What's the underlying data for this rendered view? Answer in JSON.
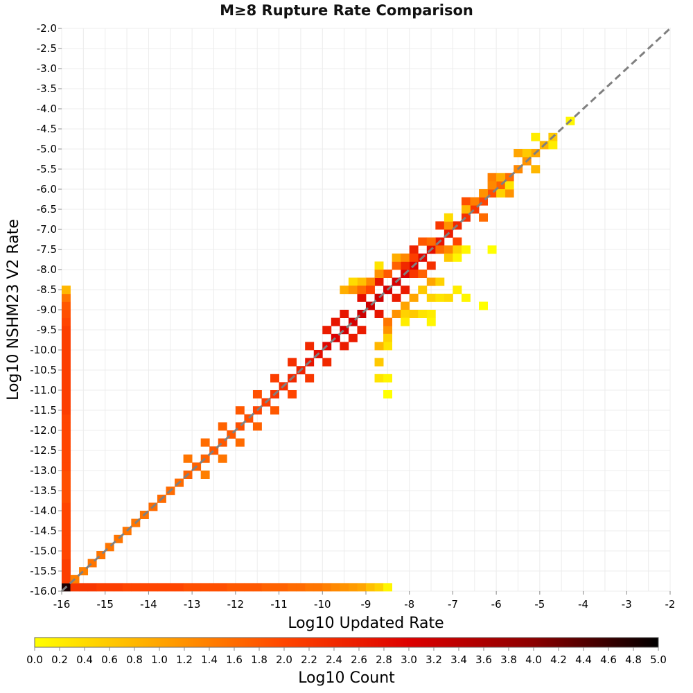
{
  "chart_data": {
    "type": "heatmap",
    "title": "M≥8 Rupture Rate Comparison",
    "xlabel": "Log10 Updated Rate",
    "ylabel": "Log10 NSHM23 V2 Rate",
    "xlim": [
      -16,
      -2
    ],
    "ylim": [
      -16,
      -2
    ],
    "x_ticks": [
      "-16",
      "-15",
      "-14",
      "-13",
      "-12",
      "-11",
      "-10",
      "-9",
      "-8",
      "-7",
      "-6",
      "-5",
      "-4",
      "-3",
      "-2"
    ],
    "y_ticks": [
      "-2.0",
      "-2.5",
      "-3.0",
      "-3.5",
      "-4.0",
      "-4.5",
      "-5.0",
      "-5.5",
      "-6.0",
      "-6.5",
      "-7.0",
      "-7.5",
      "-8.0",
      "-8.5",
      "-9.0",
      "-9.5",
      "-10.0",
      "-10.5",
      "-11.0",
      "-11.5",
      "-12.0",
      "-12.5",
      "-13.0",
      "-13.5",
      "-14.0",
      "-14.5",
      "-15.0",
      "-15.5",
      "-16.0"
    ],
    "grid": true,
    "bin_size": 0.2,
    "reference_line": {
      "from": [
        -16,
        -16
      ],
      "to": [
        -2,
        -2
      ],
      "style": "dashed",
      "color": "#808080"
    },
    "colorbar": {
      "label": "Log10 Count",
      "range": [
        0,
        5
      ],
      "ticks": [
        "0.0",
        "0.2",
        "0.4",
        "0.6",
        "0.8",
        "1.0",
        "1.2",
        "1.4",
        "1.6",
        "1.8",
        "2.0",
        "2.2",
        "2.4",
        "2.6",
        "2.8",
        "3.0",
        "3.2",
        "3.4",
        "3.6",
        "3.8",
        "4.0",
        "4.2",
        "4.4",
        "4.6",
        "4.8",
        "5.0"
      ],
      "colors": [
        "#ffff00",
        "#ffa500",
        "#ff4500",
        "#dd0000",
        "#8b0000",
        "#000000"
      ]
    },
    "cells": [
      [
        -16.0,
        -16.0,
        4.8
      ],
      [
        -15.8,
        -16.0,
        2.2
      ],
      [
        -15.6,
        -16.0,
        2.2
      ],
      [
        -15.4,
        -16.0,
        2.2
      ],
      [
        -15.2,
        -16.0,
        2.1
      ],
      [
        -15.0,
        -16.0,
        2.1
      ],
      [
        -14.8,
        -16.0,
        2.1
      ],
      [
        -14.6,
        -16.0,
        2.0
      ],
      [
        -14.4,
        -16.0,
        2.0
      ],
      [
        -14.2,
        -16.0,
        2.0
      ],
      [
        -14.0,
        -16.0,
        2.0
      ],
      [
        -13.8,
        -16.0,
        2.0
      ],
      [
        -13.6,
        -16.0,
        2.0
      ],
      [
        -13.4,
        -16.0,
        2.0
      ],
      [
        -13.2,
        -16.0,
        1.9
      ],
      [
        -13.0,
        -16.0,
        1.9
      ],
      [
        -12.8,
        -16.0,
        1.9
      ],
      [
        -12.6,
        -16.0,
        1.9
      ],
      [
        -12.4,
        -16.0,
        1.9
      ],
      [
        -12.2,
        -16.0,
        1.8
      ],
      [
        -12.0,
        -16.0,
        1.8
      ],
      [
        -11.8,
        -16.0,
        1.8
      ],
      [
        -11.6,
        -16.0,
        1.8
      ],
      [
        -11.4,
        -16.0,
        1.7
      ],
      [
        -11.2,
        -16.0,
        1.7
      ],
      [
        -11.0,
        -16.0,
        1.7
      ],
      [
        -10.8,
        -16.0,
        1.6
      ],
      [
        -10.6,
        -16.0,
        1.6
      ],
      [
        -10.4,
        -16.0,
        1.5
      ],
      [
        -10.2,
        -16.0,
        1.5
      ],
      [
        -10.0,
        -16.0,
        1.4
      ],
      [
        -9.8,
        -16.0,
        1.3
      ],
      [
        -9.6,
        -16.0,
        1.2
      ],
      [
        -9.4,
        -16.0,
        1.1
      ],
      [
        -9.2,
        -16.0,
        1.0
      ],
      [
        -9.0,
        -16.0,
        0.7
      ],
      [
        -8.8,
        -16.0,
        0.5
      ],
      [
        -8.6,
        -16.0,
        0.1
      ],
      [
        -16.0,
        -15.8,
        2.1
      ],
      [
        -16.0,
        -15.6,
        2.1
      ],
      [
        -16.0,
        -15.4,
        2.1
      ],
      [
        -16.0,
        -15.2,
        2.0
      ],
      [
        -16.0,
        -15.0,
        2.0
      ],
      [
        -16.0,
        -14.8,
        2.0
      ],
      [
        -16.0,
        -14.6,
        2.0
      ],
      [
        -16.0,
        -14.4,
        2.0
      ],
      [
        -16.0,
        -14.2,
        2.0
      ],
      [
        -16.0,
        -14.0,
        2.0
      ],
      [
        -16.0,
        -13.8,
        1.9
      ],
      [
        -16.0,
        -13.6,
        1.9
      ],
      [
        -16.0,
        -13.4,
        1.9
      ],
      [
        -16.0,
        -13.2,
        1.9
      ],
      [
        -16.0,
        -13.0,
        2.0
      ],
      [
        -16.0,
        -12.8,
        2.0
      ],
      [
        -16.0,
        -12.6,
        2.0
      ],
      [
        -16.0,
        -12.4,
        2.0
      ],
      [
        -16.0,
        -12.2,
        2.0
      ],
      [
        -16.0,
        -12.0,
        2.0
      ],
      [
        -16.0,
        -11.8,
        2.0
      ],
      [
        -16.0,
        -11.6,
        2.1
      ],
      [
        -16.0,
        -11.4,
        2.1
      ],
      [
        -16.0,
        -11.2,
        2.1
      ],
      [
        -16.0,
        -11.0,
        2.1
      ],
      [
        -16.0,
        -10.8,
        2.1
      ],
      [
        -16.0,
        -10.6,
        2.1
      ],
      [
        -16.0,
        -10.4,
        2.1
      ],
      [
        -16.0,
        -10.2,
        2.1
      ],
      [
        -16.0,
        -10.0,
        2.1
      ],
      [
        -16.0,
        -9.8,
        2.1
      ],
      [
        -16.0,
        -9.6,
        2.1
      ],
      [
        -16.0,
        -9.4,
        2.0
      ],
      [
        -16.0,
        -9.2,
        1.9
      ],
      [
        -16.0,
        -9.0,
        1.8
      ],
      [
        -16.0,
        -8.8,
        1.5
      ],
      [
        -16.0,
        -8.6,
        0.8
      ],
      [
        -15.8,
        -15.8,
        1.4
      ],
      [
        -15.6,
        -15.6,
        1.4
      ],
      [
        -15.4,
        -15.4,
        1.5
      ],
      [
        -15.2,
        -15.2,
        1.5
      ],
      [
        -15.0,
        -15.0,
        1.5
      ],
      [
        -14.8,
        -14.8,
        1.5
      ],
      [
        -14.6,
        -14.6,
        1.5
      ],
      [
        -14.4,
        -14.4,
        1.5
      ],
      [
        -14.2,
        -14.2,
        1.5
      ],
      [
        -14.0,
        -14.0,
        1.6
      ],
      [
        -13.8,
        -13.8,
        1.6
      ],
      [
        -13.6,
        -13.6,
        1.6
      ],
      [
        -13.4,
        -13.4,
        1.6
      ],
      [
        -13.2,
        -13.2,
        1.7
      ],
      [
        -13.0,
        -13.0,
        1.7
      ],
      [
        -12.8,
        -12.8,
        1.7
      ],
      [
        -12.6,
        -12.6,
        1.8
      ],
      [
        -12.4,
        -12.4,
        1.8
      ],
      [
        -12.2,
        -12.2,
        1.8
      ],
      [
        -12.0,
        -12.0,
        1.9
      ],
      [
        -11.8,
        -11.8,
        1.9
      ],
      [
        -11.6,
        -11.6,
        2.0
      ],
      [
        -11.4,
        -11.4,
        2.1
      ],
      [
        -11.2,
        -11.2,
        2.2
      ],
      [
        -11.0,
        -11.0,
        2.3
      ],
      [
        -10.8,
        -10.8,
        2.4
      ],
      [
        -10.6,
        -10.6,
        2.5
      ],
      [
        -10.4,
        -10.4,
        2.7
      ],
      [
        -10.2,
        -10.2,
        2.8
      ],
      [
        -10.0,
        -10.0,
        2.9
      ],
      [
        -9.8,
        -9.8,
        3.0
      ],
      [
        -9.6,
        -9.6,
        3.1
      ],
      [
        -9.4,
        -9.4,
        3.1
      ],
      [
        -9.2,
        -9.2,
        3.2
      ],
      [
        -9.0,
        -9.0,
        3.2
      ],
      [
        -8.8,
        -8.8,
        3.2
      ],
      [
        -8.6,
        -8.6,
        3.1
      ],
      [
        -8.4,
        -8.4,
        3.1
      ],
      [
        -8.2,
        -8.2,
        3.0
      ],
      [
        -8.0,
        -8.0,
        3.0
      ],
      [
        -7.8,
        -7.8,
        2.9
      ],
      [
        -7.6,
        -7.6,
        2.8
      ],
      [
        -7.4,
        -7.4,
        2.7
      ],
      [
        -7.2,
        -7.2,
        2.6
      ],
      [
        -7.0,
        -7.0,
        2.4
      ],
      [
        -6.8,
        -6.8,
        2.3
      ],
      [
        -6.6,
        -6.6,
        2.2
      ],
      [
        -6.4,
        -6.4,
        2.0
      ],
      [
        -6.2,
        -6.2,
        1.9
      ],
      [
        -6.0,
        -6.0,
        1.7
      ],
      [
        -5.8,
        -5.8,
        1.6
      ],
      [
        -5.6,
        -5.6,
        1.3
      ],
      [
        -5.4,
        -5.4,
        1.2
      ],
      [
        -5.2,
        -5.2,
        1.0
      ],
      [
        -5.0,
        -5.0,
        0.8
      ],
      [
        -4.8,
        -4.8,
        0.6
      ],
      [
        -4.4,
        -4.4,
        0.1
      ],
      [
        -10.0,
        -9.6,
        2.6
      ],
      [
        -9.6,
        -10.0,
        2.6
      ],
      [
        -10.4,
        -10.0,
        2.4
      ],
      [
        -10.0,
        -10.4,
        2.4
      ],
      [
        -9.8,
        -9.4,
        2.7
      ],
      [
        -9.4,
        -9.8,
        2.6
      ],
      [
        -9.2,
        -8.8,
        2.8
      ],
      [
        -8.8,
        -9.2,
        2.7
      ],
      [
        -9.6,
        -9.2,
        2.7
      ],
      [
        -9.2,
        -9.6,
        2.6
      ],
      [
        -8.6,
        -8.2,
        2.7
      ],
      [
        -8.2,
        -8.6,
        2.6
      ],
      [
        -8.8,
        -8.4,
        2.7
      ],
      [
        -8.4,
        -8.8,
        2.6
      ],
      [
        -8.0,
        -7.6,
        2.5
      ],
      [
        -7.6,
        -8.0,
        2.3
      ],
      [
        -7.4,
        -7.0,
        2.2
      ],
      [
        -7.0,
        -7.4,
        2.0
      ],
      [
        -6.8,
        -6.4,
        1.9
      ],
      [
        -6.4,
        -6.8,
        1.6
      ],
      [
        -6.2,
        -5.8,
        1.4
      ],
      [
        -5.8,
        -6.2,
        1.2
      ],
      [
        -5.6,
        -5.2,
        1.0
      ],
      [
        -5.2,
        -5.6,
        0.8
      ],
      [
        -4.8,
        -5.0,
        0.2
      ],
      [
        -5.2,
        -4.8,
        0.2
      ],
      [
        -10.8,
        -10.4,
        2.3
      ],
      [
        -10.4,
        -10.8,
        2.2
      ],
      [
        -11.2,
        -10.8,
        2.1
      ],
      [
        -10.8,
        -11.2,
        2.0
      ],
      [
        -11.6,
        -11.2,
        1.9
      ],
      [
        -11.2,
        -11.6,
        1.8
      ],
      [
        -12.0,
        -11.6,
        1.8
      ],
      [
        -11.6,
        -12.0,
        1.7
      ],
      [
        -12.4,
        -12.0,
        1.7
      ],
      [
        -12.0,
        -12.4,
        1.6
      ],
      [
        -12.8,
        -12.4,
        1.6
      ],
      [
        -12.4,
        -12.8,
        1.5
      ],
      [
        -13.2,
        -12.8,
        1.5
      ],
      [
        -12.8,
        -13.2,
        1.4
      ],
      [
        -7.8,
        -7.4,
        1.8
      ],
      [
        -7.6,
        -7.4,
        1.6
      ],
      [
        -7.4,
        -7.6,
        1.6
      ],
      [
        -7.2,
        -7.6,
        1.3
      ],
      [
        -7.0,
        -7.6,
        0.5
      ],
      [
        -6.8,
        -7.6,
        0.1
      ],
      [
        -6.2,
        -7.6,
        0.0
      ],
      [
        -7.2,
        -7.8,
        0.6
      ],
      [
        -7.0,
        -7.8,
        0.1
      ],
      [
        -7.2,
        -7.0,
        1.2
      ],
      [
        -7.2,
        -6.8,
        0.4
      ],
      [
        -6.8,
        -6.6,
        0.8
      ],
      [
        -6.6,
        -6.4,
        1.4
      ],
      [
        -6.4,
        -6.2,
        1.2
      ],
      [
        -6.2,
        -6.0,
        1.3
      ],
      [
        -6.0,
        -5.8,
        0.9
      ],
      [
        -5.4,
        -5.2,
        0.6
      ],
      [
        -6.0,
        -6.2,
        0.5
      ],
      [
        -5.8,
        -6.0,
        0.3
      ],
      [
        -8.2,
        -8.0,
        2.4
      ],
      [
        -8.0,
        -8.2,
        2.2
      ],
      [
        -8.4,
        -8.0,
        1.7
      ],
      [
        -7.8,
        -8.2,
        1.7
      ],
      [
        -7.6,
        -8.4,
        1.0
      ],
      [
        -7.4,
        -8.4,
        0.5
      ],
      [
        -8.8,
        -8.0,
        0.3
      ],
      [
        -8.4,
        -7.8,
        0.9
      ],
      [
        -8.2,
        -7.8,
        1.3
      ],
      [
        -8.0,
        -7.8,
        2.1
      ],
      [
        -8.6,
        -8.2,
        1.8
      ],
      [
        -8.8,
        -8.2,
        1.2
      ],
      [
        -9.0,
        -8.4,
        1.3
      ],
      [
        -9.2,
        -8.4,
        0.7
      ],
      [
        -9.4,
        -8.4,
        0.4
      ],
      [
        -9.6,
        -8.6,
        0.9
      ],
      [
        -9.4,
        -8.6,
        1.2
      ],
      [
        -9.2,
        -8.6,
        1.6
      ],
      [
        -9.0,
        -8.6,
        2.0
      ],
      [
        -8.6,
        -9.6,
        1.2
      ],
      [
        -8.6,
        -9.4,
        1.5
      ],
      [
        -8.4,
        -9.2,
        1.2
      ],
      [
        -8.2,
        -9.0,
        1.0
      ],
      [
        -8.0,
        -8.8,
        1.0
      ],
      [
        -7.8,
        -8.6,
        0.6
      ],
      [
        -7.6,
        -8.8,
        0.5
      ],
      [
        -7.4,
        -8.8,
        0.3
      ],
      [
        -7.2,
        -8.8,
        0.4
      ],
      [
        -7.0,
        -8.6,
        0.2
      ],
      [
        -6.8,
        -8.8,
        0.1
      ],
      [
        -6.4,
        -9.0,
        0.0
      ],
      [
        -7.6,
        -9.2,
        0.2
      ],
      [
        -8.2,
        -9.2,
        0.5
      ],
      [
        -8.2,
        -9.4,
        0.2
      ],
      [
        -8.0,
        -9.2,
        0.6
      ],
      [
        -7.8,
        -9.2,
        0.3
      ],
      [
        -7.6,
        -9.4,
        0.1
      ],
      [
        -8.6,
        -9.8,
        0.5
      ],
      [
        -8.6,
        -10.0,
        0.3
      ],
      [
        -8.8,
        -10.0,
        0.8
      ],
      [
        -8.8,
        -10.4,
        0.6
      ],
      [
        -8.8,
        -10.8,
        0.3
      ],
      [
        -8.6,
        -10.8,
        0.1
      ],
      [
        -8.6,
        -11.2,
        0.0
      ]
    ]
  }
}
